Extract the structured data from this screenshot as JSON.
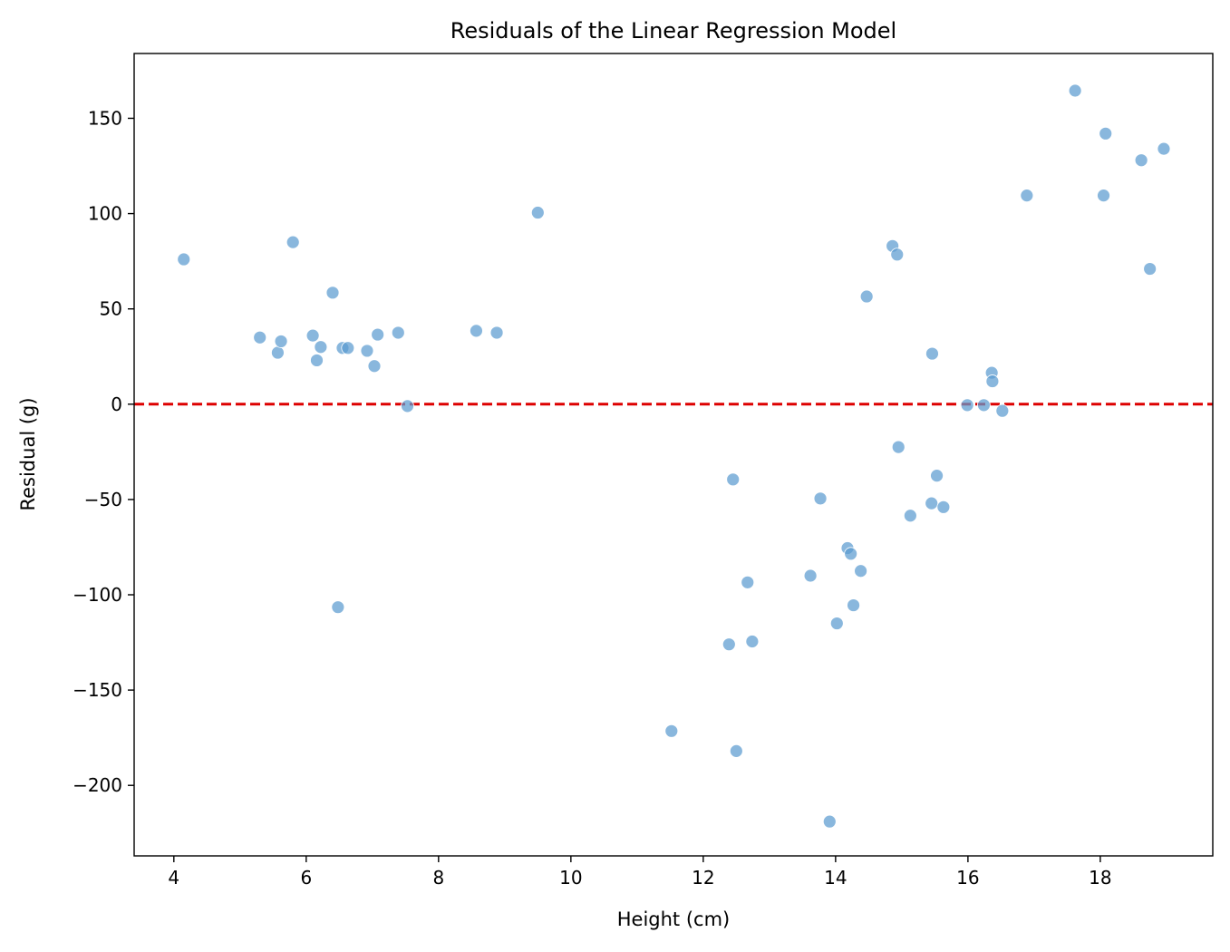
{
  "chart_data": {
    "type": "scatter",
    "title": "Residuals of the Linear Regression Model",
    "xlabel": "Height (cm)",
    "ylabel": "Residual (g)",
    "xlim": [
      3.4,
      19.7
    ],
    "ylim": [
      -237,
      184
    ],
    "xticks": [
      4,
      6,
      8,
      10,
      12,
      14,
      16,
      18
    ],
    "xtick_labels": [
      "4",
      "6",
      "8",
      "10",
      "12",
      "14",
      "16",
      "18"
    ],
    "yticks": [
      150,
      100,
      50,
      0,
      -50,
      -100,
      -150,
      -200
    ],
    "ytick_labels": [
      "150",
      "100",
      "50",
      "0",
      "−50",
      "−100",
      "−150",
      "−200"
    ],
    "grid": false,
    "reference_line": {
      "y": 0,
      "color": "#dd0000",
      "style": "dashed"
    },
    "point_color": "#5b9bd0",
    "points": [
      {
        "x": 4.15,
        "y": 76
      },
      {
        "x": 5.3,
        "y": 35
      },
      {
        "x": 5.57,
        "y": 27
      },
      {
        "x": 5.62,
        "y": 33
      },
      {
        "x": 5.8,
        "y": 85
      },
      {
        "x": 6.1,
        "y": 36
      },
      {
        "x": 6.16,
        "y": 23
      },
      {
        "x": 6.22,
        "y": 30
      },
      {
        "x": 6.4,
        "y": 58.5
      },
      {
        "x": 6.48,
        "y": -106.5
      },
      {
        "x": 6.55,
        "y": 29.5
      },
      {
        "x": 6.63,
        "y": 29.5
      },
      {
        "x": 6.92,
        "y": 28
      },
      {
        "x": 7.03,
        "y": 20
      },
      {
        "x": 7.08,
        "y": 36.5
      },
      {
        "x": 7.39,
        "y": 37.5
      },
      {
        "x": 7.53,
        "y": -1
      },
      {
        "x": 8.57,
        "y": 38.5
      },
      {
        "x": 8.88,
        "y": 37.5
      },
      {
        "x": 9.5,
        "y": 100.5
      },
      {
        "x": 11.52,
        "y": -171.5
      },
      {
        "x": 12.39,
        "y": -126
      },
      {
        "x": 12.45,
        "y": -39.5
      },
      {
        "x": 12.5,
        "y": -182
      },
      {
        "x": 12.67,
        "y": -93.5
      },
      {
        "x": 12.74,
        "y": -124.5
      },
      {
        "x": 13.62,
        "y": -90
      },
      {
        "x": 13.77,
        "y": -49.5
      },
      {
        "x": 13.91,
        "y": -219
      },
      {
        "x": 14.02,
        "y": -115
      },
      {
        "x": 14.18,
        "y": -75.5
      },
      {
        "x": 14.23,
        "y": -78.5
      },
      {
        "x": 14.27,
        "y": -105.5
      },
      {
        "x": 14.38,
        "y": -87.5
      },
      {
        "x": 14.47,
        "y": 56.5
      },
      {
        "x": 14.86,
        "y": 83
      },
      {
        "x": 14.93,
        "y": 78.5
      },
      {
        "x": 14.95,
        "y": -22.5
      },
      {
        "x": 15.13,
        "y": -58.5
      },
      {
        "x": 15.45,
        "y": -52
      },
      {
        "x": 15.46,
        "y": 26.5
      },
      {
        "x": 15.53,
        "y": -37.5
      },
      {
        "x": 15.63,
        "y": -54
      },
      {
        "x": 15.99,
        "y": -0.5
      },
      {
        "x": 16.24,
        "y": -0.5
      },
      {
        "x": 16.36,
        "y": 16.5
      },
      {
        "x": 16.37,
        "y": 12
      },
      {
        "x": 16.52,
        "y": -3.5
      },
      {
        "x": 16.89,
        "y": 109.5
      },
      {
        "x": 17.62,
        "y": 164.5
      },
      {
        "x": 18.05,
        "y": 109.5
      },
      {
        "x": 18.08,
        "y": 142
      },
      {
        "x": 18.62,
        "y": 128
      },
      {
        "x": 18.75,
        "y": 71
      },
      {
        "x": 18.96,
        "y": 134
      }
    ]
  }
}
